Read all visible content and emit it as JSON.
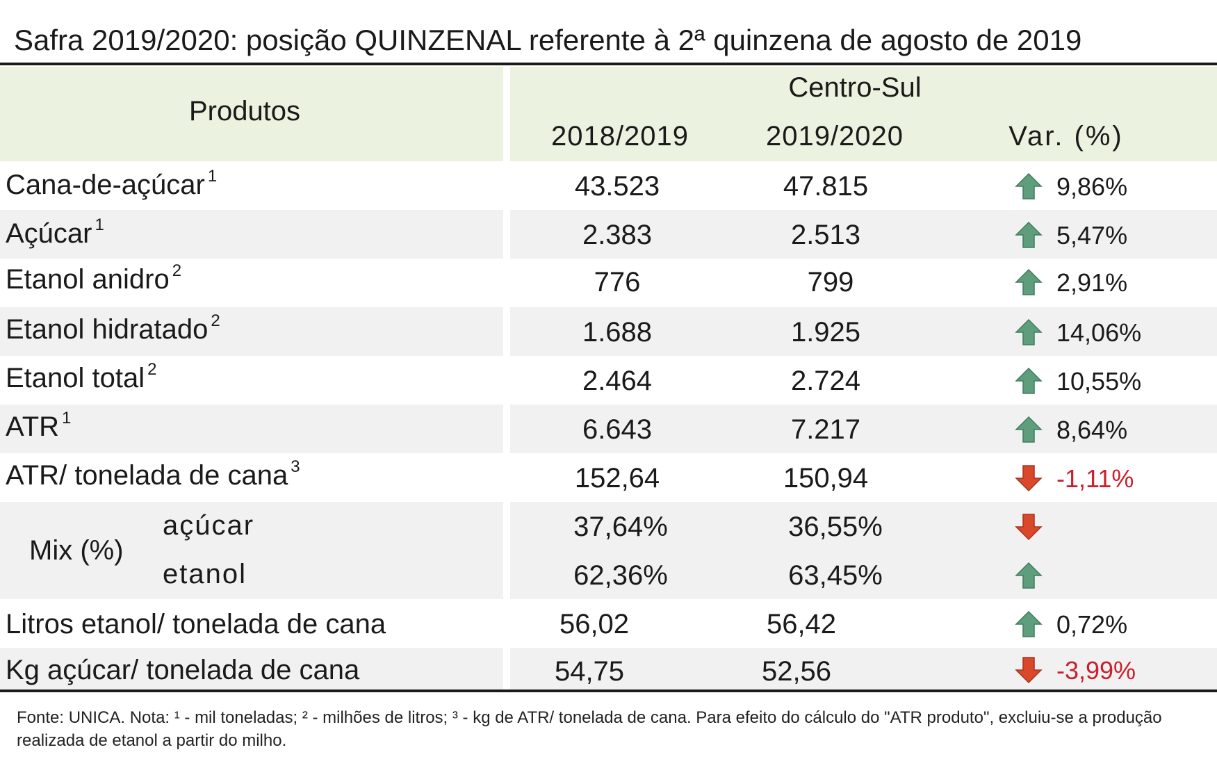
{
  "title": "Safra 2019/2020: posição QUINZENAL referente à 2ª quinzena de agosto de 2019",
  "header": {
    "products": "Produtos",
    "region": "Centro-Sul",
    "col_prev": "2018/2019",
    "col_curr": "2019/2020",
    "col_var": "Var. (%)"
  },
  "rows": [
    {
      "label": "Cana-de-açúcar",
      "sup": "1",
      "prev": "43.523",
      "curr": "47.815",
      "var": "9,86%",
      "dir": "up"
    },
    {
      "label": "Açúcar",
      "sup": "1",
      "prev": "2.383",
      "curr": "2.513",
      "var": "5,47%",
      "dir": "up"
    },
    {
      "label": "Etanol anidro",
      "sup": "2",
      "prev": "776",
      "curr": "799",
      "var": "2,91%",
      "dir": "up"
    },
    {
      "label": "Etanol hidratado",
      "sup": "2",
      "prev": "1.688",
      "curr": "1.925",
      "var": "14,06%",
      "dir": "up"
    },
    {
      "label": "Etanol total",
      "sup": "2",
      "prev": "2.464",
      "curr": "2.724",
      "var": "10,55%",
      "dir": "up"
    },
    {
      "label": "ATR",
      "sup": "1",
      "prev": "6.643",
      "curr": "7.217",
      "var": "8,64%",
      "dir": "up"
    },
    {
      "label": "ATR/ tonelada de cana",
      "sup": "3",
      "prev": "152,64",
      "curr": "150,94",
      "var": "-1,11%",
      "dir": "down"
    }
  ],
  "mix": {
    "label": "Mix (%)",
    "sugar": {
      "label": "açúcar",
      "prev": "37,64%",
      "curr": "36,55%",
      "dir": "down"
    },
    "ethanol": {
      "label": "etanol",
      "prev": "62,36%",
      "curr": "63,45%",
      "dir": "up"
    }
  },
  "rows_bottom": [
    {
      "label": "Litros etanol/ tonelada de cana",
      "prev": "56,02",
      "curr": "56,42",
      "var": "0,72%",
      "dir": "up"
    },
    {
      "label": "Kg açúcar/ tonelada de cana",
      "prev": "54,75",
      "curr": "52,56",
      "var": "-3,99%",
      "dir": "down"
    }
  ],
  "colors": {
    "header_bg": "#ebf2df",
    "row_shade": "#f1f1f1",
    "arrow_up": "#5f9e7d",
    "arrow_down": "#d9482b",
    "negative_text": "#c8202c"
  },
  "icons": {
    "up": "arrow-up-icon",
    "down": "arrow-down-icon"
  },
  "footnote": "Fonte: UNICA. Nota: ¹ - mil toneladas; ² - milhões de litros; ³ - kg de ATR/ tonelada de cana. Para efeito do cálculo do \"ATR produto\", excluiu-se a produção realizada de etanol a partir do milho."
}
